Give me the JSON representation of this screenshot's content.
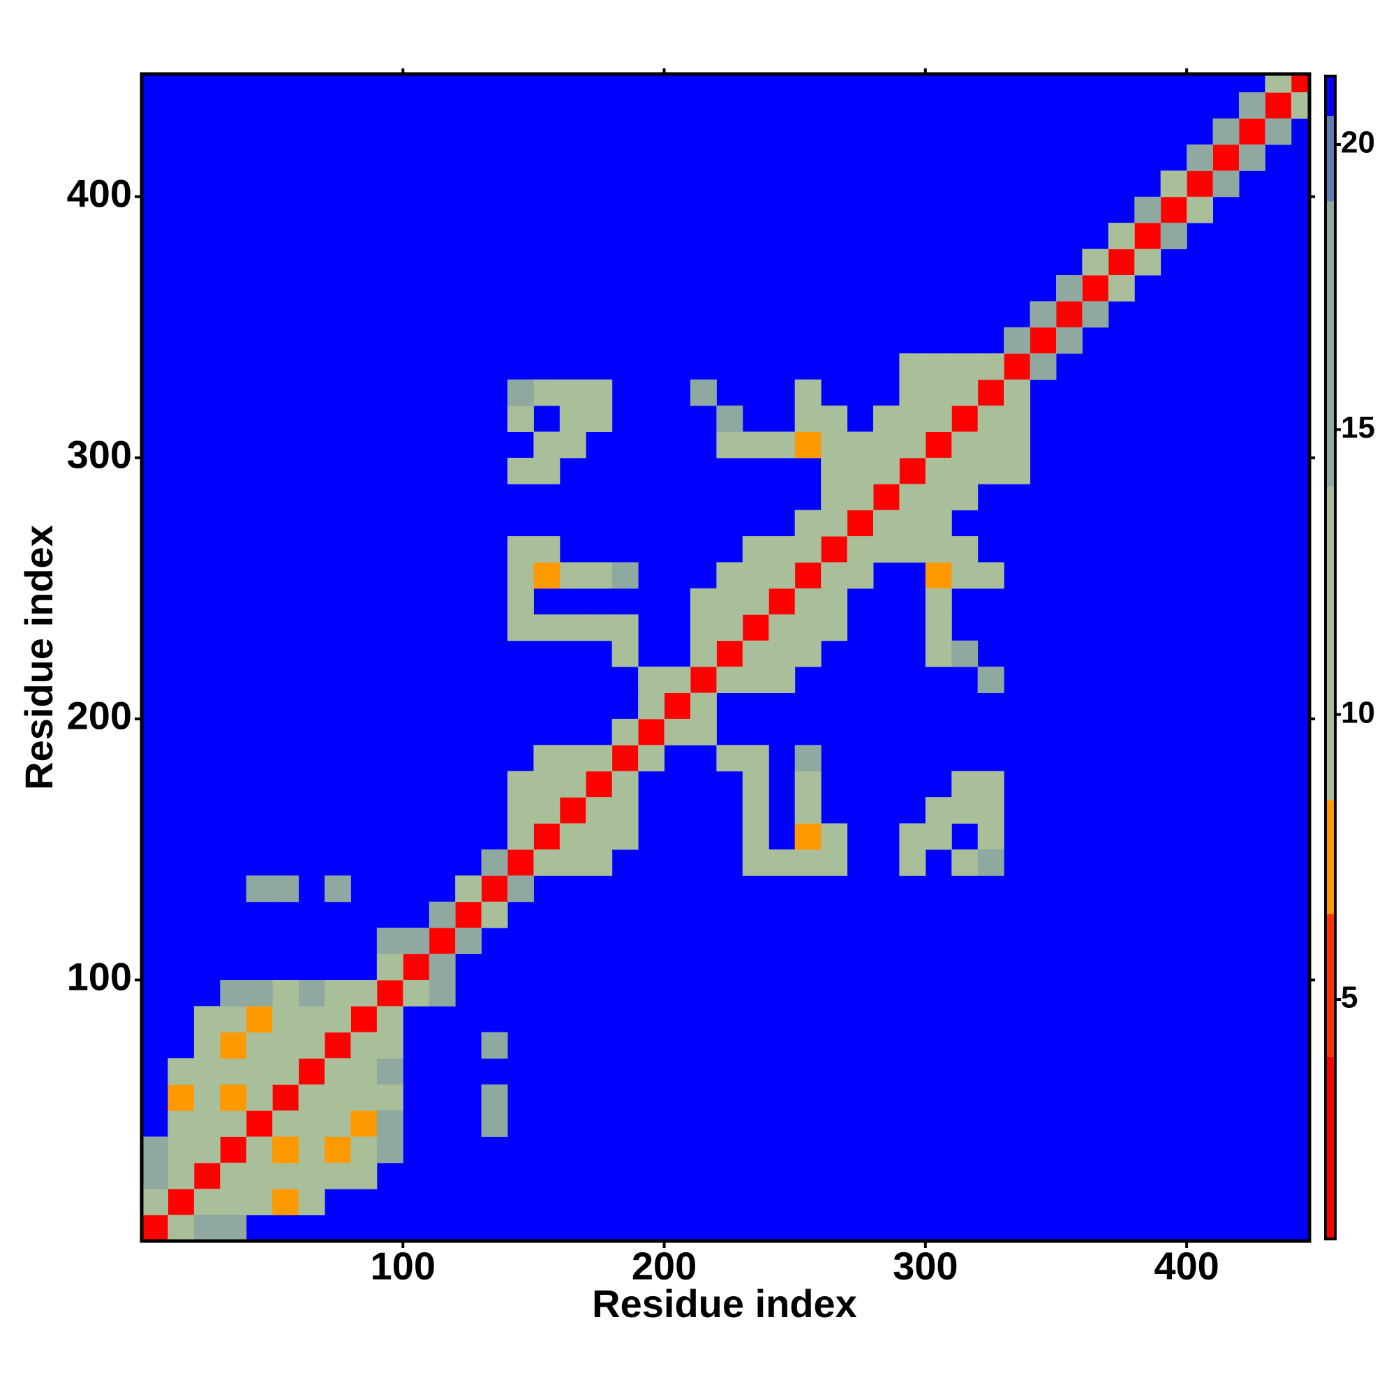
{
  "chart_data": {
    "type": "heatmap",
    "symmetric": true,
    "cell_size": 10,
    "x_label": "Residue index",
    "y_label": "Residue index",
    "xlim": [
      0,
      447
    ],
    "ylim": [
      0,
      447
    ],
    "xticks": [
      100,
      200,
      300,
      400
    ],
    "yticks": [
      100,
      200,
      300,
      400
    ],
    "zlim": [
      0.8,
      21.2
    ],
    "zticks": [
      5,
      10,
      15,
      20
    ],
    "colorscale": [
      {
        "value": 0.8,
        "color": "#ff0000"
      },
      {
        "value": 4,
        "color": "#ff3300"
      },
      {
        "value": 6.5,
        "color": "#ff9900"
      },
      {
        "value": 8.5,
        "color": "#a9bf99"
      },
      {
        "value": 14,
        "color": "#8fa8a0"
      },
      {
        "value": 19,
        "color": "#5f7fb0"
      },
      {
        "value": 20.5,
        "color": "#0000ff"
      }
    ],
    "cells": [
      [
        0,
        0,
        3
      ],
      [
        10,
        10,
        3
      ],
      [
        20,
        20,
        3
      ],
      [
        30,
        30,
        3
      ],
      [
        40,
        40,
        3
      ],
      [
        50,
        50,
        3
      ],
      [
        60,
        60,
        3
      ],
      [
        70,
        70,
        3
      ],
      [
        80,
        80,
        3
      ],
      [
        90,
        90,
        3
      ],
      [
        100,
        100,
        3
      ],
      [
        110,
        110,
        3
      ],
      [
        120,
        120,
        3
      ],
      [
        130,
        130,
        3
      ],
      [
        140,
        140,
        3
      ],
      [
        150,
        150,
        3
      ],
      [
        160,
        160,
        3
      ],
      [
        170,
        170,
        3
      ],
      [
        180,
        180,
        3
      ],
      [
        190,
        190,
        3
      ],
      [
        200,
        200,
        3
      ],
      [
        210,
        210,
        3
      ],
      [
        220,
        220,
        3
      ],
      [
        230,
        230,
        3
      ],
      [
        240,
        240,
        3
      ],
      [
        250,
        250,
        3
      ],
      [
        260,
        260,
        3
      ],
      [
        270,
        270,
        3
      ],
      [
        280,
        280,
        3
      ],
      [
        290,
        290,
        3
      ],
      [
        300,
        300,
        3
      ],
      [
        310,
        310,
        3
      ],
      [
        320,
        320,
        3
      ],
      [
        330,
        330,
        3
      ],
      [
        340,
        340,
        3
      ],
      [
        350,
        350,
        3
      ],
      [
        360,
        360,
        3
      ],
      [
        370,
        370,
        3
      ],
      [
        380,
        380,
        3
      ],
      [
        390,
        390,
        3
      ],
      [
        400,
        400,
        3
      ],
      [
        410,
        410,
        3
      ],
      [
        420,
        420,
        3
      ],
      [
        430,
        430,
        3
      ],
      [
        440,
        440,
        3
      ],
      [
        0,
        10,
        12
      ],
      [
        10,
        20,
        12
      ],
      [
        20,
        30,
        11
      ],
      [
        30,
        40,
        11
      ],
      [
        40,
        50,
        11
      ],
      [
        50,
        60,
        11
      ],
      [
        60,
        70,
        11
      ],
      [
        70,
        80,
        11
      ],
      [
        80,
        90,
        11
      ],
      [
        90,
        100,
        12
      ],
      [
        100,
        110,
        14
      ],
      [
        110,
        120,
        14
      ],
      [
        120,
        130,
        12
      ],
      [
        130,
        140,
        14
      ],
      [
        140,
        150,
        10
      ],
      [
        150,
        160,
        10
      ],
      [
        160,
        170,
        10
      ],
      [
        170,
        180,
        11
      ],
      [
        180,
        190,
        13
      ],
      [
        190,
        200,
        12
      ],
      [
        200,
        210,
        11
      ],
      [
        210,
        220,
        11
      ],
      [
        220,
        230,
        10
      ],
      [
        230,
        240,
        10
      ],
      [
        240,
        250,
        10
      ],
      [
        250,
        260,
        10
      ],
      [
        260,
        270,
        10
      ],
      [
        270,
        280,
        10
      ],
      [
        280,
        290,
        10
      ],
      [
        290,
        300,
        10
      ],
      [
        300,
        310,
        10
      ],
      [
        310,
        320,
        10
      ],
      [
        320,
        330,
        11
      ],
      [
        330,
        340,
        14
      ],
      [
        340,
        350,
        14
      ],
      [
        350,
        360,
        14
      ],
      [
        360,
        370,
        13
      ],
      [
        370,
        380,
        12
      ],
      [
        380,
        390,
        14
      ],
      [
        390,
        400,
        13
      ],
      [
        400,
        410,
        14
      ],
      [
        410,
        420,
        14
      ],
      [
        420,
        430,
        14
      ],
      [
        430,
        440,
        12
      ],
      [
        10,
        40,
        12
      ],
      [
        10,
        50,
        8
      ],
      [
        20,
        50,
        12
      ],
      [
        20,
        60,
        12
      ],
      [
        10,
        60,
        13
      ],
      [
        30,
        60,
        12
      ],
      [
        30,
        70,
        7
      ],
      [
        40,
        70,
        12
      ],
      [
        40,
        80,
        7
      ],
      [
        50,
        80,
        12
      ],
      [
        20,
        70,
        13
      ],
      [
        20,
        80,
        13
      ],
      [
        30,
        80,
        12
      ],
      [
        10,
        30,
        12
      ],
      [
        0,
        30,
        14
      ],
      [
        0,
        20,
        14
      ],
      [
        20,
        40,
        12
      ],
      [
        30,
        50,
        7
      ],
      [
        40,
        60,
        12
      ],
      [
        50,
        70,
        12
      ],
      [
        60,
        80,
        12
      ],
      [
        60,
        90,
        14
      ],
      [
        70,
        90,
        12
      ],
      [
        50,
        90,
        13
      ],
      [
        40,
        90,
        14
      ],
      [
        30,
        90,
        14
      ],
      [
        40,
        130,
        15
      ],
      [
        50,
        130,
        14
      ],
      [
        70,
        130,
        14
      ],
      [
        90,
        110,
        14
      ],
      [
        140,
        160,
        11
      ],
      [
        140,
        170,
        12
      ],
      [
        150,
        170,
        11
      ],
      [
        160,
        180,
        12
      ],
      [
        150,
        180,
        13
      ],
      [
        140,
        290,
        13
      ],
      [
        150,
        290,
        12
      ],
      [
        160,
        300,
        12
      ],
      [
        150,
        300,
        13
      ],
      [
        140,
        310,
        13
      ],
      [
        160,
        310,
        11
      ],
      [
        170,
        310,
        12
      ],
      [
        150,
        320,
        13
      ],
      [
        170,
        320,
        13
      ],
      [
        140,
        320,
        14
      ],
      [
        160,
        320,
        12
      ],
      [
        140,
        250,
        11
      ],
      [
        150,
        250,
        7
      ],
      [
        160,
        250,
        12
      ],
      [
        170,
        250,
        13
      ],
      [
        140,
        260,
        12
      ],
      [
        150,
        260,
        13
      ],
      [
        180,
        250,
        14
      ],
      [
        140,
        230,
        12
      ],
      [
        150,
        230,
        11
      ],
      [
        160,
        230,
        13
      ],
      [
        170,
        230,
        11
      ],
      [
        180,
        230,
        13
      ],
      [
        180,
        220,
        13
      ],
      [
        190,
        210,
        13
      ],
      [
        140,
        240,
        13
      ],
      [
        210,
        230,
        12
      ],
      [
        220,
        240,
        11
      ],
      [
        220,
        250,
        12
      ],
      [
        230,
        250,
        12
      ],
      [
        210,
        240,
        13
      ],
      [
        230,
        260,
        11
      ],
      [
        240,
        260,
        12
      ],
      [
        250,
        270,
        11
      ],
      [
        260,
        280,
        11
      ],
      [
        260,
        290,
        12
      ],
      [
        270,
        290,
        11
      ],
      [
        280,
        300,
        11
      ],
      [
        290,
        310,
        11
      ],
      [
        300,
        320,
        11
      ],
      [
        280,
        310,
        13
      ],
      [
        250,
        300,
        7
      ],
      [
        240,
        300,
        12
      ],
      [
        220,
        300,
        13
      ],
      [
        220,
        310,
        14
      ],
      [
        230,
        300,
        13
      ],
      [
        260,
        300,
        12
      ],
      [
        260,
        310,
        12
      ],
      [
        250,
        320,
        13
      ],
      [
        250,
        310,
        12
      ],
      [
        210,
        320,
        14
      ],
      [
        270,
        300,
        12
      ],
      [
        300,
        330,
        12
      ],
      [
        290,
        320,
        12
      ],
      [
        290,
        330,
        13
      ],
      [
        310,
        330,
        12
      ]
    ]
  }
}
